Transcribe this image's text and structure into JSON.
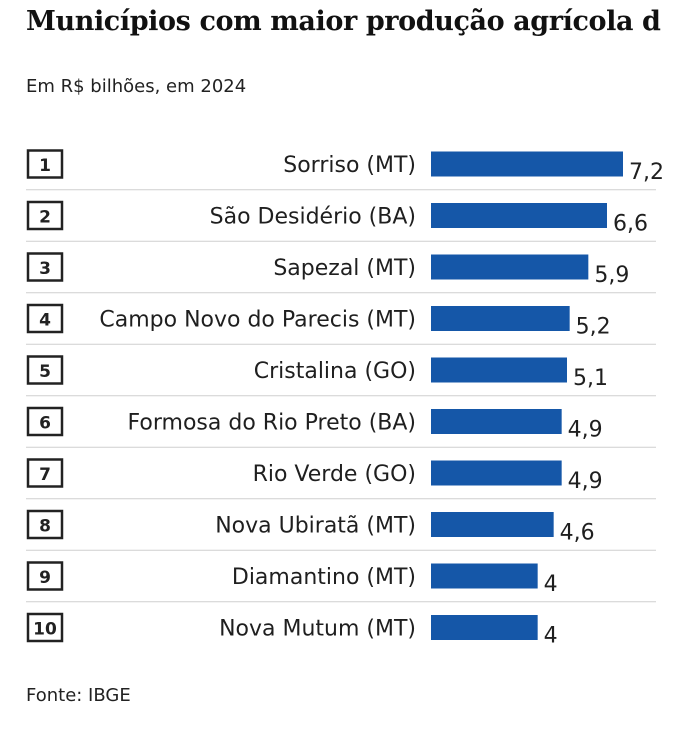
{
  "header": {
    "title": "Municípios com maior produção agrícola d",
    "subtitle": "Em R$ bilhões, em 2024"
  },
  "footer": {
    "source": "Fonte: IBGE"
  },
  "colors": {
    "bar": "#1557a8",
    "rank_border": "#222222",
    "separator": "#cfcfcf"
  },
  "chart_data": {
    "type": "bar",
    "orientation": "horizontal",
    "title": "Municípios com maior produção agrícola d",
    "subtitle": "Em R$ bilhões, em 2024",
    "ranks": [
      "1",
      "2",
      "3",
      "4",
      "5",
      "6",
      "7",
      "8",
      "9",
      "10"
    ],
    "categories": [
      "Sorriso (MT)",
      "São Desidério (BA)",
      "Sapezal (MT)",
      "Campo Novo do Parecis (MT)",
      "Cristalina (GO)",
      "Formosa do Rio Preto (BA)",
      "Rio Verde (GO)",
      "Nova Ubiratã (MT)",
      "Diamantino (MT)",
      "Nova Mutum (MT)"
    ],
    "values": [
      7.2,
      6.6,
      5.9,
      5.2,
      5.1,
      4.9,
      4.9,
      4.6,
      4,
      4
    ],
    "value_labels": [
      "7,2",
      "6,6",
      "5,9",
      "5,2",
      "5,1",
      "4,9",
      "4,9",
      "4,6",
      "4",
      "4"
    ],
    "xlim": [
      0,
      7.2
    ],
    "grid": false,
    "legend": "none"
  }
}
